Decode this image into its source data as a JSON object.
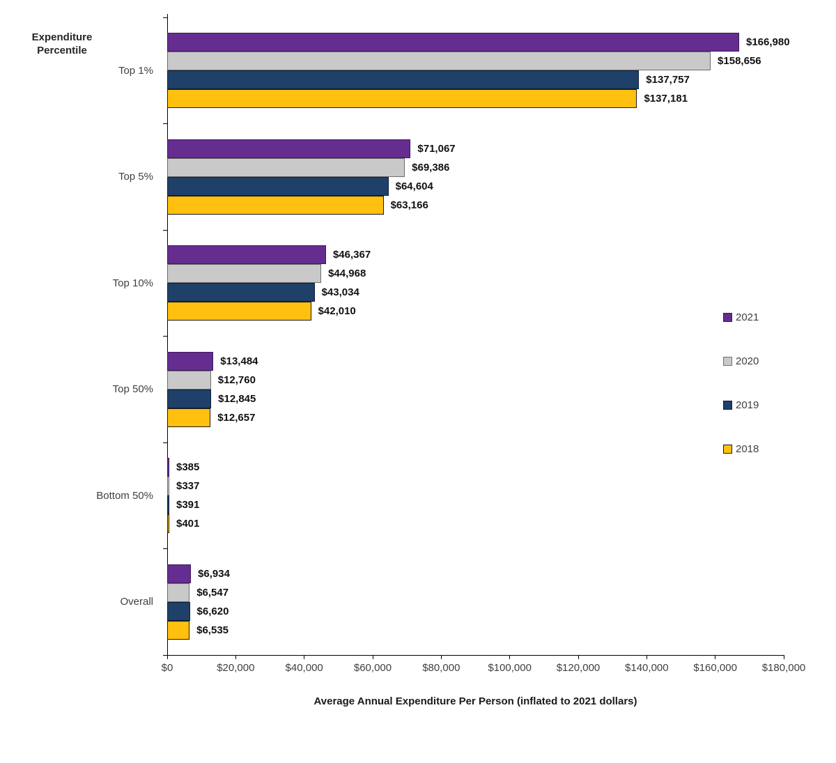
{
  "chart_data": {
    "type": "bar",
    "orientation": "horizontal",
    "ylabel": "Expenditure Percentile",
    "xlabel": "Average Annual Expenditure Per Person (inflated to 2021 dollars)",
    "categories": [
      "Top 1%",
      "Top 5%",
      "Top 10%",
      "Top 50%",
      "Bottom 50%",
      "Overall"
    ],
    "series": [
      {
        "name": "2021",
        "color": "#662D91",
        "border": "#3D1A57",
        "values": [
          166980,
          71067,
          46367,
          13484,
          385,
          6934
        ],
        "labels": [
          "$166,980",
          "$71,067",
          "$46,367",
          "$13,484",
          "$385",
          "$6,934"
        ]
      },
      {
        "name": "2020",
        "color": "#C9C9C9",
        "border": "#6E6E6E",
        "values": [
          158656,
          69386,
          44968,
          12760,
          337,
          6547
        ],
        "labels": [
          "$158,656",
          "$69,386",
          "$44,968",
          "$12,760",
          "$337",
          "$6,547"
        ]
      },
      {
        "name": "2019",
        "color": "#1F4068",
        "border": "#0D1F38",
        "values": [
          137757,
          64604,
          43034,
          12845,
          391,
          6620
        ],
        "labels": [
          "$137,757",
          "$64,604",
          "$43,034",
          "$12,845",
          "$391",
          "$6,620"
        ]
      },
      {
        "name": "2018",
        "color": "#FFC010",
        "border": "#1A1A1A",
        "values": [
          137181,
          63166,
          42010,
          12657,
          401,
          6535
        ],
        "labels": [
          "$137,181",
          "$63,166",
          "$42,010",
          "$12,657",
          "$401",
          "$6,535"
        ]
      }
    ],
    "xlim": [
      0,
      180000
    ],
    "x_ticks": [
      {
        "value": 0,
        "label": "$0"
      },
      {
        "value": 20000,
        "label": "$20,000"
      },
      {
        "value": 40000,
        "label": "$40,000"
      },
      {
        "value": 60000,
        "label": "$60,000"
      },
      {
        "value": 80000,
        "label": "$80,000"
      },
      {
        "value": 100000,
        "label": "$100,000"
      },
      {
        "value": 120000,
        "label": "$120,000"
      },
      {
        "value": 140000,
        "label": "$140,000"
      },
      {
        "value": 160000,
        "label": "$160,000"
      },
      {
        "value": 180000,
        "label": "$180,000"
      }
    ],
    "legend": {
      "position": "right",
      "entries": [
        "2021",
        "2020",
        "2019",
        "2018"
      ]
    },
    "grid": "off"
  }
}
